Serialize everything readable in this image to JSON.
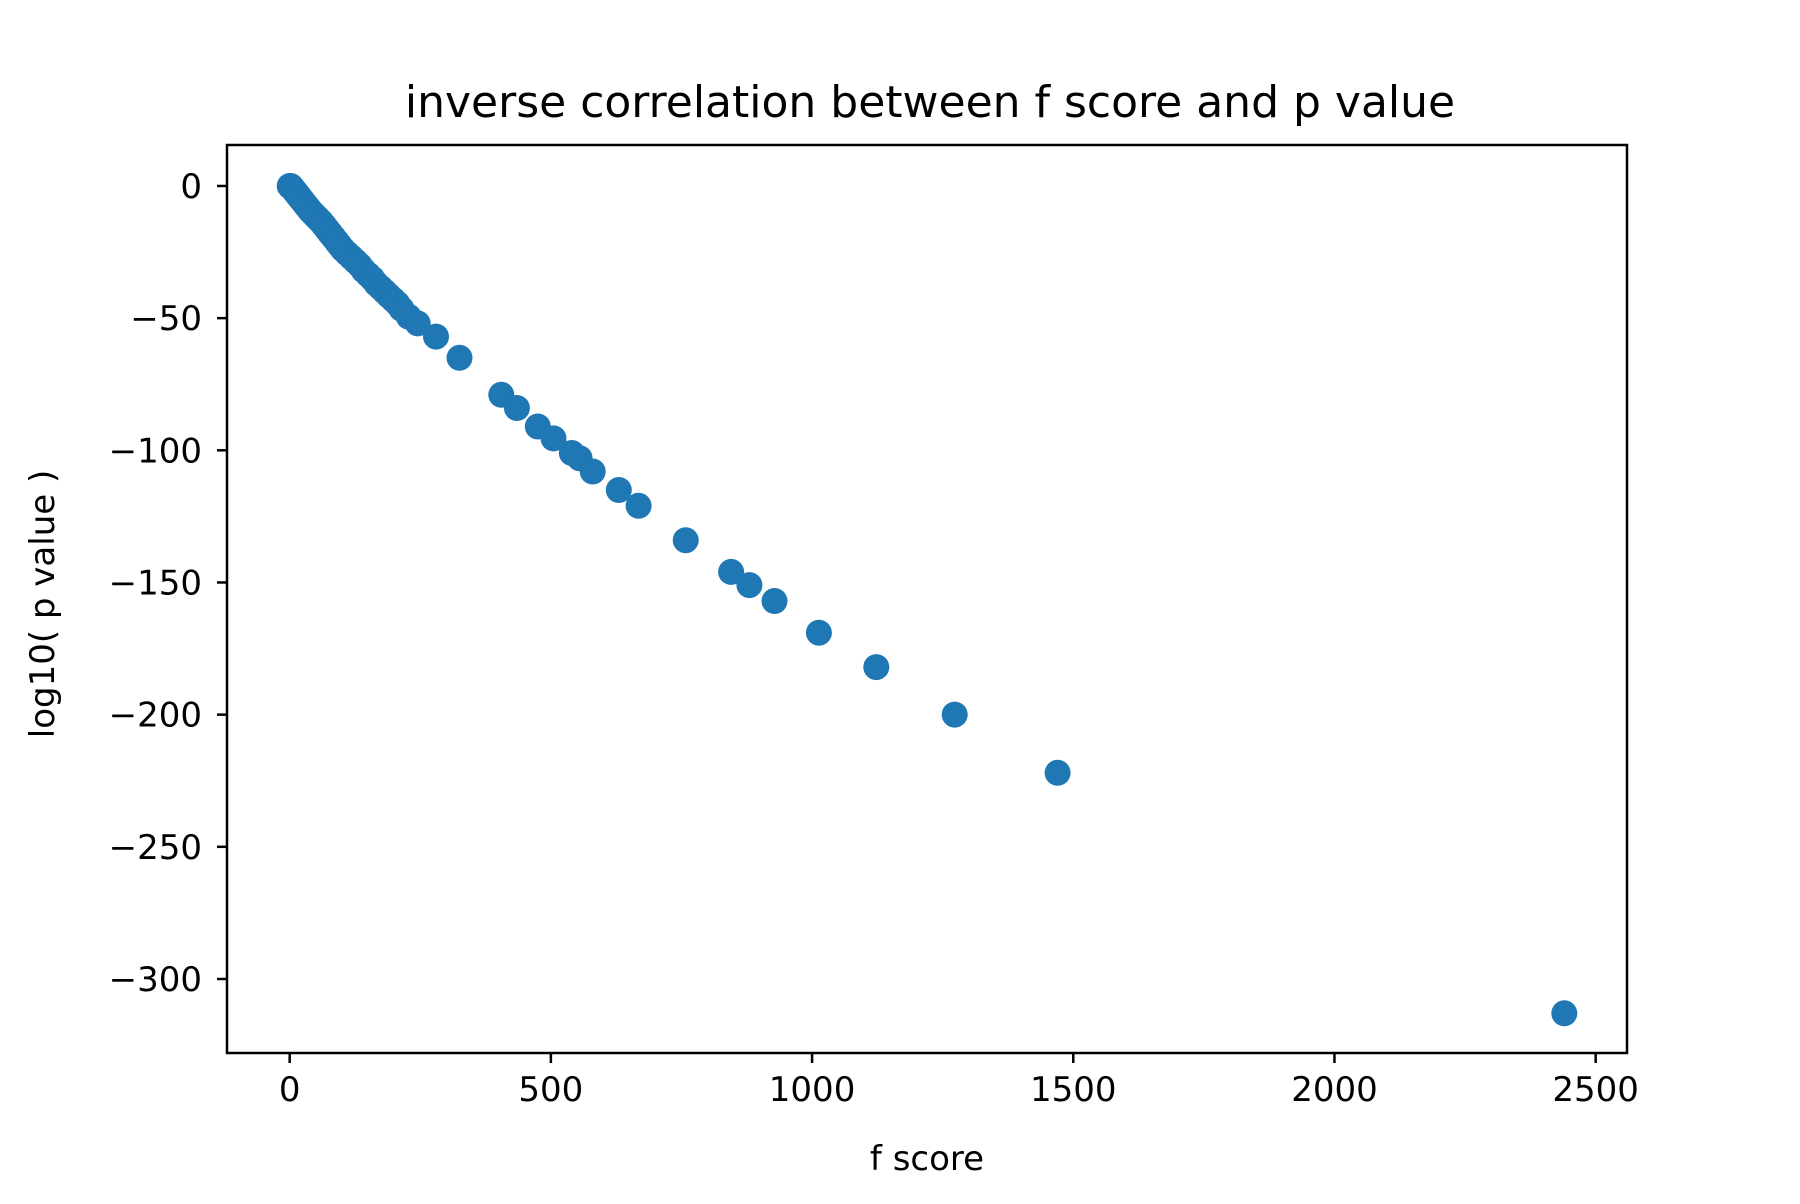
{
  "chart_data": {
    "type": "scatter",
    "title": "inverse correlation between f score and p value",
    "xlabel": "f score",
    "ylabel": "log10( p value )",
    "xlim": [
      -120,
      2560
    ],
    "ylim": [
      -328,
      15.5
    ],
    "xticks": [
      0,
      500,
      1000,
      1500,
      2000,
      2500
    ],
    "yticks": [
      0,
      -50,
      -100,
      -150,
      -200,
      -250,
      -300
    ],
    "xtick_labels": [
      "0",
      "500",
      "1000",
      "1500",
      "2000",
      "2500"
    ],
    "ytick_labels": [
      "0",
      "−50",
      "−100",
      "−150",
      "−200",
      "−250",
      "−300"
    ],
    "grid": false,
    "legend": "none",
    "marker_color": "#1f77b4",
    "series": [
      {
        "points": [
          [
            0,
            0
          ],
          [
            2,
            0
          ],
          [
            4,
            -0.5
          ],
          [
            6,
            -1
          ],
          [
            8,
            -1.5
          ],
          [
            10,
            -2
          ],
          [
            12,
            -2.5
          ],
          [
            14,
            -3
          ],
          [
            16,
            -3.5
          ],
          [
            18,
            -4
          ],
          [
            20,
            -4.5
          ],
          [
            24,
            -5.5
          ],
          [
            28,
            -6.5
          ],
          [
            32,
            -7.5
          ],
          [
            36,
            -8.5
          ],
          [
            40,
            -9.5
          ],
          [
            45,
            -10.5
          ],
          [
            50,
            -11.5
          ],
          [
            55,
            -12.5
          ],
          [
            60,
            -13.5
          ],
          [
            66,
            -15
          ],
          [
            72,
            -16.5
          ],
          [
            78,
            -18
          ],
          [
            84,
            -19.5
          ],
          [
            90,
            -21
          ],
          [
            96,
            -22.5
          ],
          [
            102,
            -24
          ],
          [
            110,
            -25.5
          ],
          [
            118,
            -27
          ],
          [
            126,
            -28.5
          ],
          [
            134,
            -30
          ],
          [
            142,
            -32
          ],
          [
            150,
            -33.5
          ],
          [
            158,
            -35
          ],
          [
            166,
            -37
          ],
          [
            174,
            -38.5
          ],
          [
            182,
            -40
          ],
          [
            190,
            -41.5
          ],
          [
            198,
            -43
          ],
          [
            206,
            -44.5
          ],
          [
            214,
            -46.5
          ],
          [
            228,
            -49.5
          ],
          [
            245,
            -52
          ],
          [
            280,
            -57
          ],
          [
            325,
            -65
          ],
          [
            405,
            -79
          ],
          [
            435,
            -84
          ],
          [
            475,
            -91
          ],
          [
            505,
            -95.5
          ],
          [
            540,
            -101
          ],
          [
            555,
            -103
          ],
          [
            580,
            -108
          ],
          [
            630,
            -115
          ],
          [
            668,
            -121
          ],
          [
            758,
            -134
          ],
          [
            845,
            -146
          ],
          [
            880,
            -151
          ],
          [
            928,
            -157
          ],
          [
            1013,
            -169
          ],
          [
            1123,
            -182
          ],
          [
            1273,
            -200
          ],
          [
            1470,
            -222
          ],
          [
            2440,
            -313
          ]
        ]
      }
    ]
  }
}
